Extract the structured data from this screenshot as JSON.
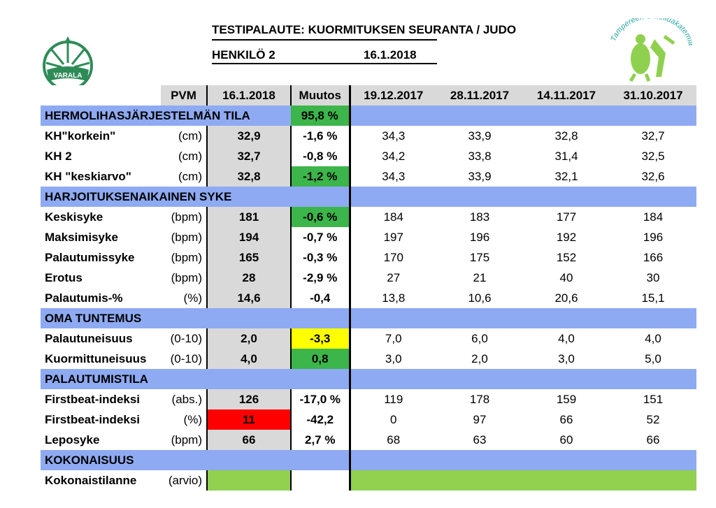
{
  "header": {
    "title": "TESTIPALAUTE: KUORMITUKSEN SEURANTA / JUDO",
    "person": "HENKILÖ 2",
    "date": "16.1.2018"
  },
  "logos": {
    "left_text": "VARALA",
    "right_text": "Tampereen Urheiluakatemia"
  },
  "columns": {
    "pvm": "PVM",
    "current": "16.1.2018",
    "change": "Muutos",
    "history": [
      "19.12.2017",
      "28.11.2017",
      "14.11.2017",
      "31.10.2017"
    ]
  },
  "sections": [
    {
      "title": "HERMOLIHASJÄRJESTELMÄN TILA",
      "title_change": "95,8 %",
      "title_change_color": "green",
      "rows": [
        {
          "name": "KH\"korkein\"",
          "unit": "(cm)",
          "current": "32,9",
          "change": "-1,6 %",
          "change_color": "",
          "current_color": "",
          "history": [
            "34,3",
            "33,9",
            "32,8",
            "32,7"
          ]
        },
        {
          "name": "KH 2",
          "unit": "(cm)",
          "current": "32,7",
          "change": "-0,8 %",
          "change_color": "",
          "current_color": "",
          "history": [
            "34,2",
            "33,8",
            "31,4",
            "32,5"
          ]
        },
        {
          "name": "KH \"keskiarvo\"",
          "unit": "(cm)",
          "current": "32,8",
          "change": "-1,2 %",
          "change_color": "green",
          "current_color": "",
          "history": [
            "34,3",
            "33,9",
            "32,1",
            "32,6"
          ]
        }
      ]
    },
    {
      "title": "HARJOITUKSENAIKAINEN SYKE",
      "title_change": "",
      "title_change_color": "",
      "rows": [
        {
          "name": "Keskisyke",
          "unit": "(bpm)",
          "current": "181",
          "change": "-0,6 %",
          "change_color": "green",
          "current_color": "",
          "history": [
            "184",
            "183",
            "177",
            "184"
          ]
        },
        {
          "name": "Maksimisyke",
          "unit": "(bpm)",
          "current": "194",
          "change": "-0,7 %",
          "change_color": "",
          "current_color": "",
          "history": [
            "197",
            "196",
            "192",
            "196"
          ]
        },
        {
          "name": "Palautumissyke",
          "unit": "(bpm)",
          "current": "165",
          "change": "-0,3 %",
          "change_color": "",
          "current_color": "",
          "history": [
            "170",
            "175",
            "152",
            "166"
          ]
        },
        {
          "name": "Erotus",
          "unit": "(bpm)",
          "current": "28",
          "change": "-2,9 %",
          "change_color": "",
          "current_color": "",
          "history": [
            "27",
            "21",
            "40",
            "30"
          ]
        },
        {
          "name": "Palautumis-%",
          "unit": "(%)",
          "current": "14,6",
          "change": "-0,4",
          "change_color": "",
          "current_color": "",
          "history": [
            "13,8",
            "10,6",
            "20,6",
            "15,1"
          ]
        }
      ]
    },
    {
      "title": "OMA TUNTEMUS",
      "title_change": "",
      "title_change_color": "",
      "rows": [
        {
          "name": "Palautuneisuus",
          "unit": "(0-10)",
          "current": "2,0",
          "change": "-3,3",
          "change_color": "yellow",
          "current_color": "",
          "history": [
            "7,0",
            "6,0",
            "4,0",
            "4,0"
          ]
        },
        {
          "name": "Kuormittuneisuus",
          "unit": "(0-10)",
          "current": "4,0",
          "change": "0,8",
          "change_color": "green",
          "current_color": "",
          "history": [
            "3,0",
            "2,0",
            "3,0",
            "5,0"
          ]
        }
      ]
    },
    {
      "title": "PALAUTUMISTILA",
      "title_change": "",
      "title_change_color": "",
      "rows": [
        {
          "name": "Firstbeat-indeksi",
          "unit": "(abs.)",
          "current": "126",
          "change": "-17,0 %",
          "change_color": "",
          "current_color": "",
          "history": [
            "119",
            "178",
            "159",
            "151"
          ]
        },
        {
          "name": "Firstbeat-indeksi",
          "unit": "(%)",
          "current": "11",
          "change": "-42,2",
          "change_color": "",
          "current_color": "red",
          "history": [
            "0",
            "97",
            "66",
            "52"
          ]
        },
        {
          "name": "Leposyke",
          "unit": "(bpm)",
          "current": "66",
          "change": "2,7 %",
          "change_color": "",
          "current_color": "",
          "history": [
            "68",
            "63",
            "60",
            "66"
          ]
        }
      ]
    },
    {
      "title": "KOKONAISUUS",
      "title_change": "",
      "title_change_color": "",
      "rows": [
        {
          "name": "Kokonaistilanne",
          "unit": "(arvio)",
          "current": "",
          "change": "",
          "change_color": "white",
          "current_color": "lime",
          "history": [
            "",
            "",
            "",
            ""
          ],
          "history_color": "lime"
        }
      ]
    }
  ]
}
